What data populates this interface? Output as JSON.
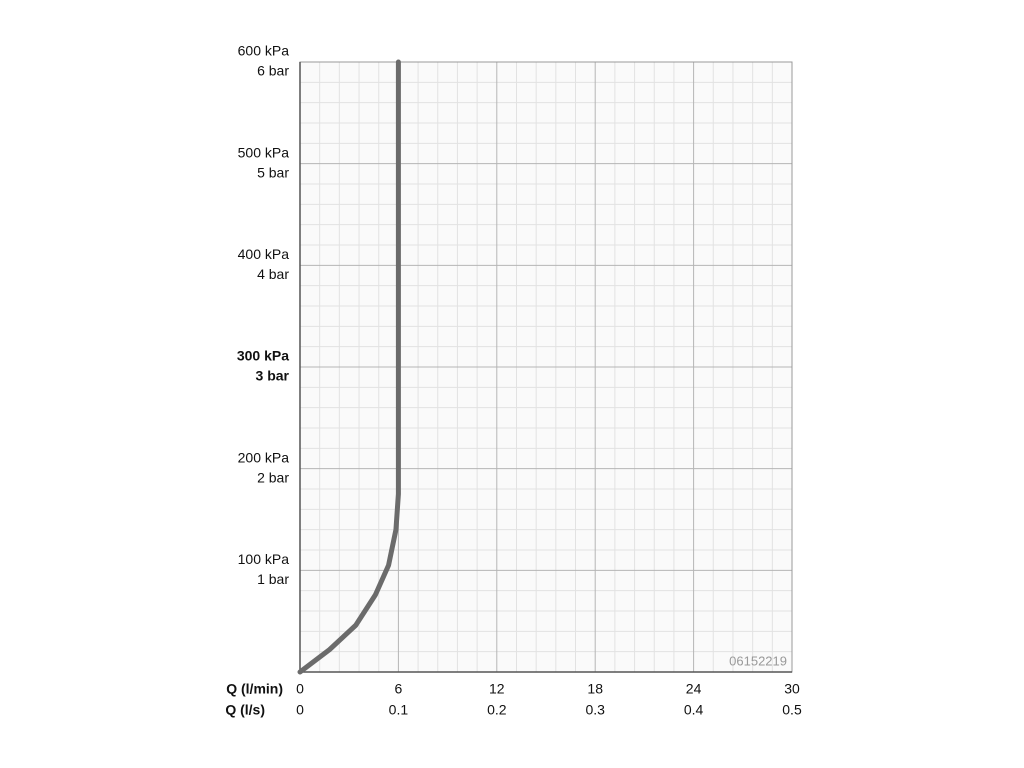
{
  "chart_data": {
    "type": "line",
    "x_axis_label": "Q (l/min)",
    "x2_axis_label": "Q (l/s)",
    "annotation": "06152219",
    "xlim": [
      0,
      30
    ],
    "xticks": [
      0,
      6,
      12,
      18,
      24,
      30
    ],
    "x2lim": [
      0,
      0.5
    ],
    "x2ticks": [
      0,
      0.1,
      0.2,
      0.3,
      0.4,
      0.5
    ],
    "ylim": [
      0,
      600
    ],
    "yticks": [
      {
        "value": 100,
        "label": "100 kPa"
      },
      {
        "value": 200,
        "label": "200 kPa"
      },
      {
        "value": 300,
        "label": "300 kPa"
      },
      {
        "value": 400,
        "label": "400 kPa"
      },
      {
        "value": 500,
        "label": "500 kPa"
      },
      {
        "value": 600,
        "label": "600 kPa"
      }
    ],
    "y2lim": [
      0,
      6
    ],
    "y2ticks": [
      {
        "value": 1,
        "label": "1 bar"
      },
      {
        "value": 2,
        "label": "2 bar"
      },
      {
        "value": 3,
        "label": "3 bar"
      },
      {
        "value": 4,
        "label": "4 bar"
      },
      {
        "value": 5,
        "label": "5 bar"
      },
      {
        "value": 6,
        "label": "6 bar"
      }
    ],
    "highlight_y": 300,
    "grid": true,
    "minor_divisions": 5,
    "x": [
      0,
      1.8,
      3.4,
      4.6,
      5.4,
      5.85,
      6,
      6,
      6
    ],
    "values": [
      0,
      22,
      46,
      76,
      105,
      140,
      175,
      200,
      600
    ],
    "color": "#6b6b6b"
  }
}
